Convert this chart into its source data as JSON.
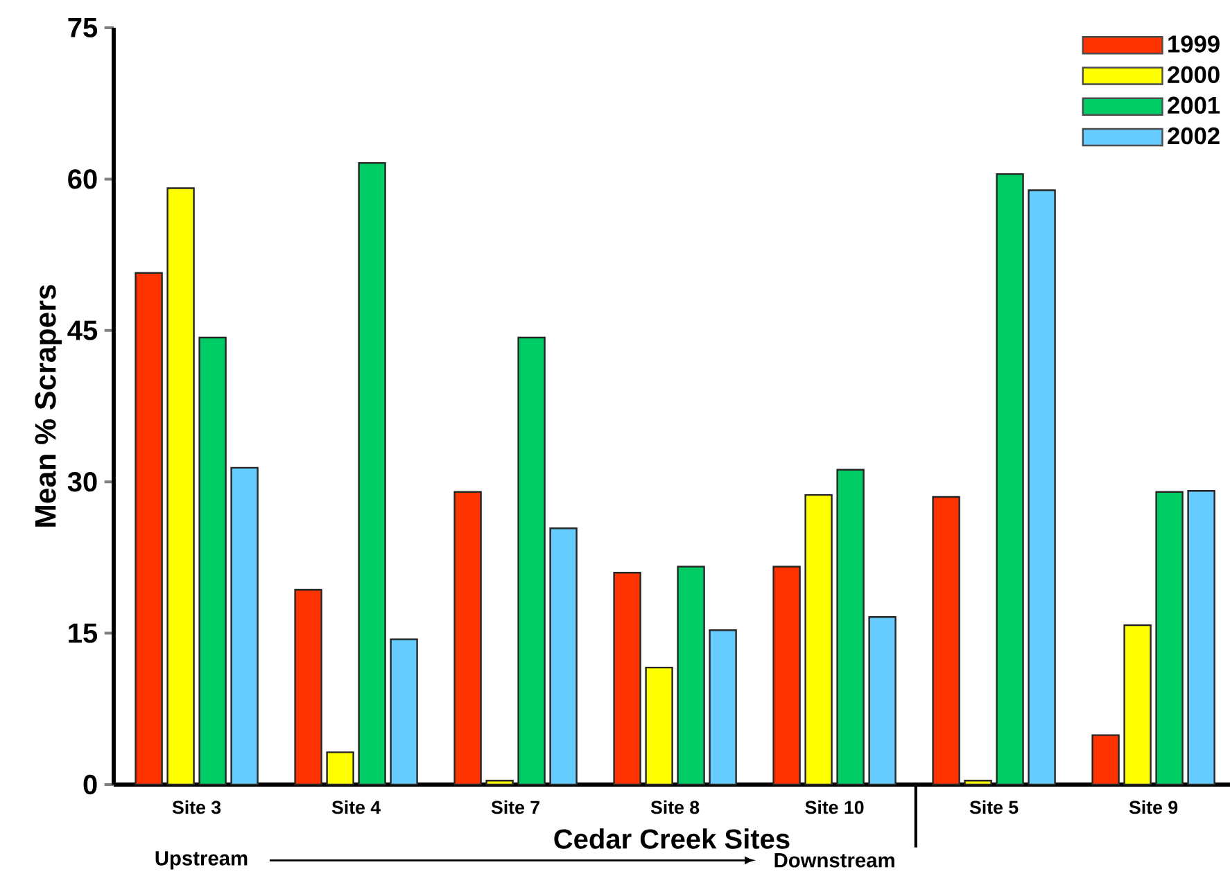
{
  "chart_data": {
    "type": "bar",
    "ylabel": "Mean % Scrapers",
    "xlabel": "Cedar Creek Sites",
    "categories": [
      "Site 3",
      "Site 4",
      "Site 7",
      "Site 8",
      "Site 10",
      "Site 5",
      "Site 9"
    ],
    "series": [
      {
        "name": "1999",
        "color": "#ff3300",
        "values": [
          50.7,
          19.3,
          29.0,
          21.0,
          21.6,
          28.5,
          4.9
        ]
      },
      {
        "name": "2000",
        "color": "#ffff00",
        "values": [
          59.1,
          3.2,
          0.4,
          11.6,
          28.7,
          0.4,
          15.8
        ]
      },
      {
        "name": "2001",
        "color": "#00cc66",
        "values": [
          44.3,
          61.6,
          44.3,
          21.6,
          31.2,
          60.5,
          29.0
        ]
      },
      {
        "name": "2002",
        "color": "#66ccff",
        "values": [
          31.4,
          14.4,
          25.4,
          15.3,
          16.6,
          58.9,
          29.1
        ]
      }
    ],
    "ylim": [
      0,
      75
    ],
    "yticks": [
      0,
      15,
      30,
      45,
      60,
      75
    ],
    "grid": false,
    "legend": "top right",
    "annotations": [
      "Upstream",
      "Downstream"
    ]
  }
}
